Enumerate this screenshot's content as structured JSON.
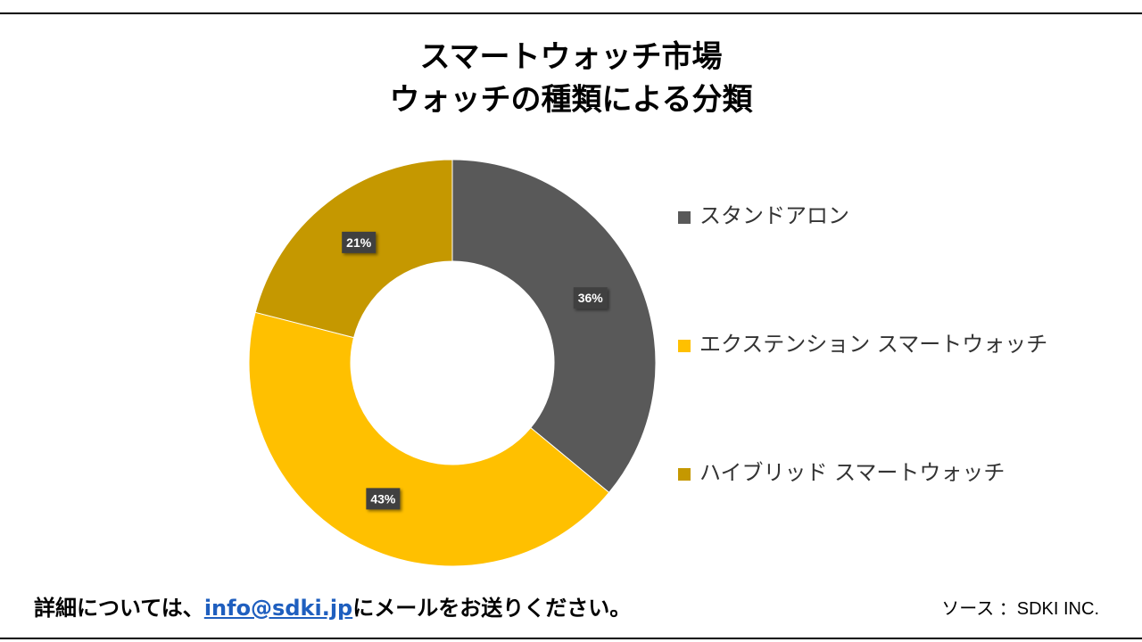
{
  "title": {
    "line1": "スマートウォッチ市場",
    "line2": "ウォッチの種類による分類"
  },
  "chart_data": {
    "type": "pie",
    "donut": true,
    "categories": [
      "スタンドアロン",
      "エクステンション スマートウォッチ",
      "ハイブリッド スマートウォッチ"
    ],
    "values": [
      36,
      43,
      21
    ],
    "labels": [
      "36%",
      "43%",
      "21%"
    ],
    "colors": [
      "#595959",
      "#FFC000",
      "#C59800"
    ],
    "legend_position": "right"
  },
  "footer": {
    "prefix": "詳細については、",
    "email": "info@sdki.jp",
    "suffix": "にメールをお送りください。",
    "source": "ソース ：SDKI INC."
  }
}
